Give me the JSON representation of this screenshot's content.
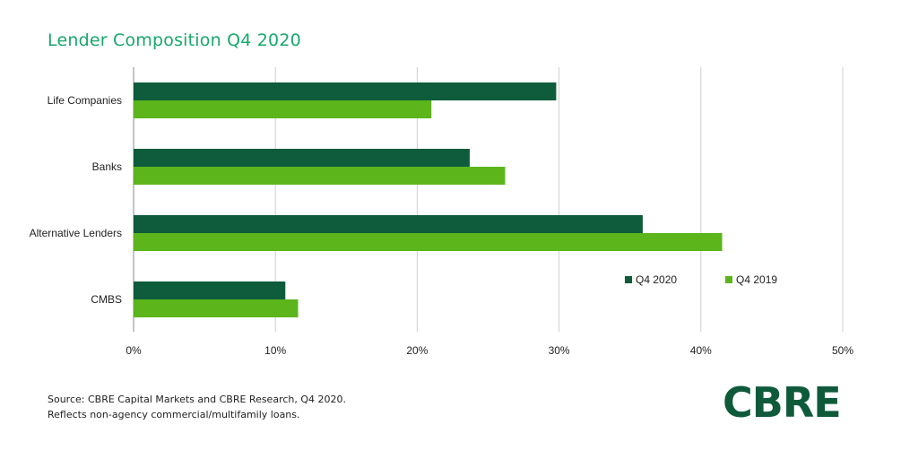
{
  "chart_data": {
    "type": "bar",
    "orientation": "horizontal",
    "title": "Lender Composition Q4 2020",
    "categories": [
      "Life Companies",
      "Banks",
      "Alternative Lenders",
      "CMBS"
    ],
    "series": [
      {
        "name": "Q4 2020",
        "color": "#0e5c3b",
        "values": [
          29.8,
          23.7,
          35.9,
          10.7
        ]
      },
      {
        "name": "Q4 2019",
        "color": "#5bb51b",
        "values": [
          21.0,
          26.2,
          41.5,
          11.6
        ]
      }
    ],
    "xlim": [
      0,
      50
    ],
    "xticks": [
      "0%",
      "10%",
      "20%",
      "30%",
      "40%",
      "50%"
    ],
    "grid": true,
    "legend_position": "lower-right"
  },
  "footer": {
    "line1": "Source: CBRE Capital Markets and CBRE Research, Q4 2020.",
    "line2": "Reflects non-agency commercial/multifamily loans."
  },
  "logo": {
    "text": "CBRE",
    "color": "#0e5a3a"
  }
}
